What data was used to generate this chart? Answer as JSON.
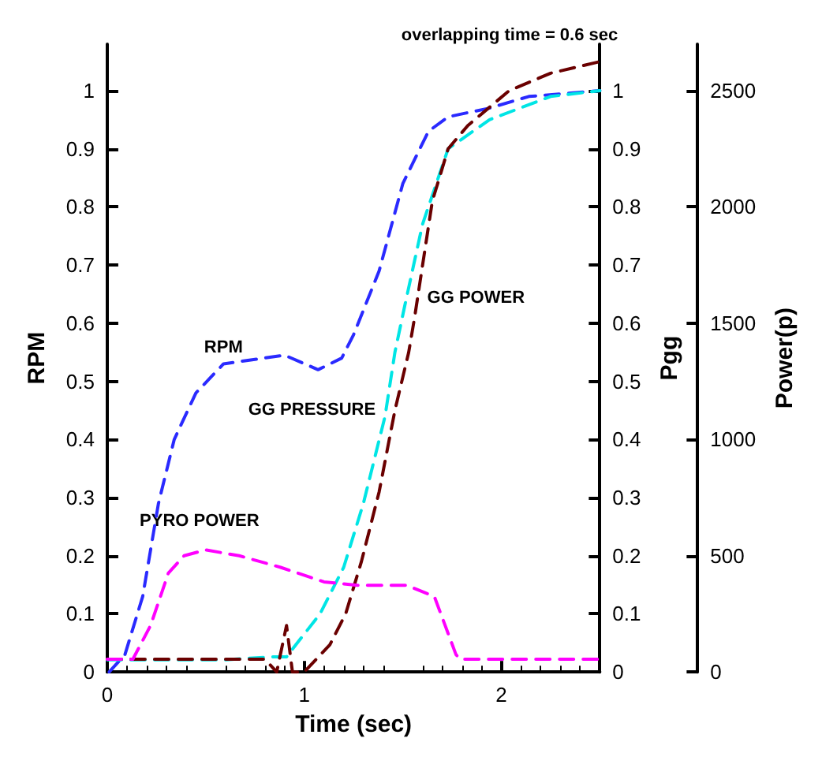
{
  "chart_data": {
    "type": "line",
    "title": "overlapping time = 0.6 sec",
    "xlabel": "Time (sec)",
    "ylabel": "RPM",
    "y2label": "Pgg",
    "y3label": "Power(p)",
    "xlim": [
      0,
      2.5
    ],
    "xticks": [
      0,
      1,
      2
    ],
    "ylim": [
      0,
      1.08
    ],
    "yticks": [
      0,
      0.1,
      0.2,
      0.3,
      0.4,
      0.5,
      0.6,
      0.7,
      0.8,
      0.9,
      1
    ],
    "y2lim": [
      0,
      1.08
    ],
    "y2ticks": [
      0,
      0.1,
      0.2,
      0.3,
      0.4,
      0.5,
      0.6,
      0.7,
      0.8,
      0.9,
      1
    ],
    "y3lim": [
      0,
      2700
    ],
    "y3ticks": [
      0,
      500,
      1000,
      1500,
      2000,
      2500
    ],
    "line_style": "dashed",
    "marker": "none",
    "grid": false,
    "series": [
      {
        "color": "#2a2aff",
        "x": [
          0.01,
          0.09,
          0.18,
          0.26,
          0.34,
          0.45,
          0.59,
          0.9,
          1.07,
          1.19,
          1.25,
          1.38,
          1.5,
          1.63,
          1.73,
          1.94,
          2.14,
          2.5
        ],
        "values": [
          0,
          0.03,
          0.13,
          0.29,
          0.4,
          0.48,
          0.53,
          0.545,
          0.52,
          0.54,
          0.58,
          0.69,
          0.84,
          0.93,
          0.955,
          0.97,
          0.99,
          1
        ]
      },
      {
        "color": "#00e5e5",
        "x": [
          0,
          0.6,
          0.84,
          0.91,
          0.96,
          1.08,
          1.2,
          1.3,
          1.41,
          1.46,
          1.51,
          1.6,
          1.73,
          1.94,
          2.25,
          2.5
        ],
        "values": [
          0.021,
          0.021,
          0.026,
          0.026,
          0.048,
          0.1,
          0.18,
          0.29,
          0.44,
          0.55,
          0.63,
          0.77,
          0.9,
          0.95,
          0.99,
          1
        ]
      },
      {
        "color": "#6a0000",
        "x": [
          0,
          0.8,
          0.86,
          0.91,
          0.94,
          1,
          1.13,
          1.21,
          1.29,
          1.38,
          1.46,
          1.53,
          1.56,
          1.65,
          1.73,
          1.83,
          2.04,
          2.25,
          2.5
        ],
        "values": [
          0.022,
          0.022,
          0,
          0.08,
          0,
          0,
          0.047,
          0.1,
          0.19,
          0.31,
          0.45,
          0.55,
          0.61,
          0.81,
          0.9,
          0.94,
          1,
          1.03,
          1.05
        ]
      },
      {
        "color": "#ff00ff",
        "x": [
          0,
          0.13,
          0.22,
          0.31,
          0.39,
          0.5,
          0.67,
          0.88,
          1.1,
          1.27,
          1.52,
          1.66,
          1.77,
          1.79,
          2.5
        ],
        "values": [
          0.022,
          0.022,
          0.08,
          0.17,
          0.2,
          0.21,
          0.2,
          0.18,
          0.155,
          0.149,
          0.149,
          0.13,
          0.03,
          0.022,
          0.022
        ]
      }
    ],
    "annotations": [
      {
        "text": "RPM",
        "x": 0.59,
        "y": 0.53
      },
      {
        "text": "GG PRESSURE",
        "x": 1.41,
        "y": 0.44
      },
      {
        "text": "GG POWER",
        "x": 1.56,
        "y": 0.61
      },
      {
        "text": "PYRO POWER",
        "x": 0.5,
        "y": 0.21
      }
    ]
  }
}
